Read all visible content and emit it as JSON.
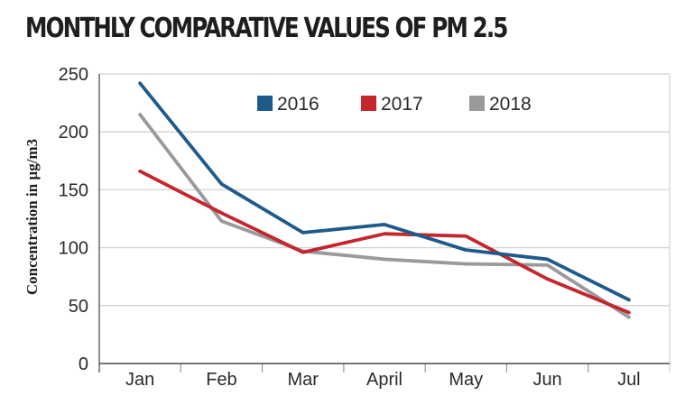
{
  "chart_data": {
    "type": "line",
    "title": "MONTHLY COMPARATIVE VALUES OF PM 2.5",
    "xlabel": "",
    "ylabel": "Concentration in µg/m3",
    "categories": [
      "Jan",
      "Feb",
      "Mar",
      "April",
      "May",
      "Jun",
      "Jul"
    ],
    "ylim": [
      0,
      250
    ],
    "yticks": [
      0,
      50,
      100,
      150,
      200,
      250
    ],
    "grid": true,
    "legend_position": "top",
    "series": [
      {
        "name": "2016",
        "color": "#1f5a8c",
        "values": [
          242,
          155,
          113,
          120,
          98,
          90,
          55
        ]
      },
      {
        "name": "2017",
        "color": "#c4262e",
        "values": [
          166,
          130,
          96,
          112,
          110,
          73,
          44
        ]
      },
      {
        "name": "2018",
        "color": "#9a9a9a",
        "values": [
          215,
          123,
          97,
          90,
          86,
          85,
          40
        ]
      }
    ]
  }
}
